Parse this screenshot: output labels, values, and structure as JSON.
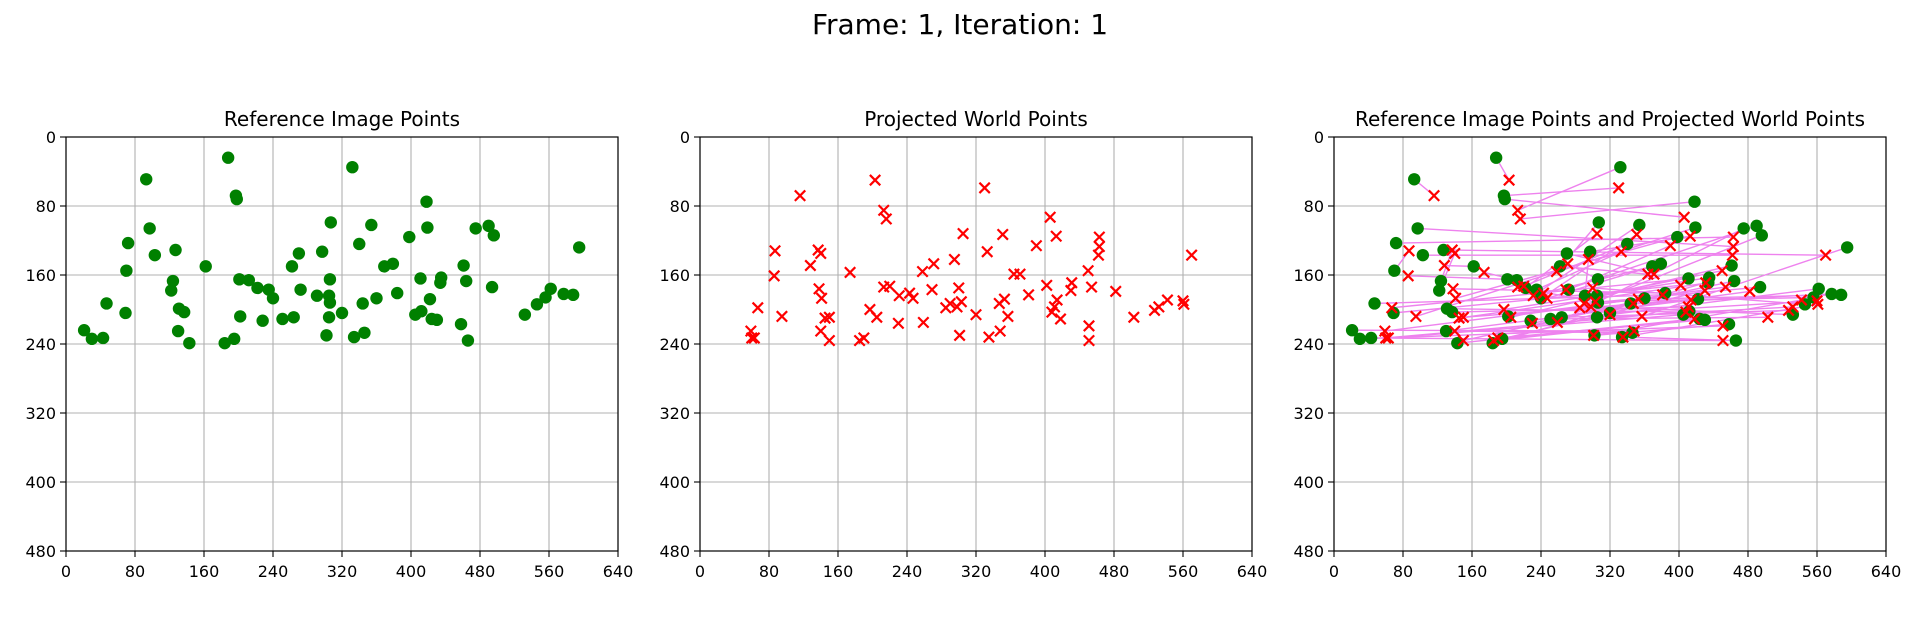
{
  "figure": {
    "suptitle": "Frame: 1, Iteration: 1"
  },
  "colors": {
    "reference": "#008000",
    "projected": "#ff0000",
    "link": "#ee82ee",
    "grid": "#b0b0b0"
  },
  "chart_data": [
    {
      "type": "scatter",
      "title": "Reference Image Points",
      "xlim": [
        0,
        640
      ],
      "ylim": [
        480,
        0
      ],
      "xticks": [
        "0",
        "80",
        "160",
        "240",
        "320",
        "400",
        "480",
        "560",
        "640"
      ],
      "yticks": [
        "0",
        "80",
        "160",
        "240",
        "320",
        "400",
        "480"
      ],
      "grid": true,
      "series": [
        {
          "marker": "circle",
          "color": "#008000",
          "points": [
            [
              93,
              49
            ],
            [
              188,
              24
            ],
            [
              197,
              68
            ],
            [
              198,
              72
            ],
            [
              332,
              35
            ],
            [
              418,
              75
            ],
            [
              72,
              123
            ],
            [
              97,
              106
            ],
            [
              103,
              137
            ],
            [
              127,
              131
            ],
            [
              70,
              155
            ],
            [
              124,
              167
            ],
            [
              122,
              178
            ],
            [
              162,
              150
            ],
            [
              201,
              165
            ],
            [
              212,
              166
            ],
            [
              222,
              175
            ],
            [
              235,
              177
            ],
            [
              240,
              187
            ],
            [
              270,
              135
            ],
            [
              262,
              150
            ],
            [
              272,
              177
            ],
            [
              297,
              133
            ],
            [
              307,
              99
            ],
            [
              306,
              165
            ],
            [
              291,
              184
            ],
            [
              305,
              184
            ],
            [
              306,
              192
            ],
            [
              340,
              124
            ],
            [
              354,
              102
            ],
            [
              369,
              150
            ],
            [
              379,
              147
            ],
            [
              384,
              181
            ],
            [
              398,
              116
            ],
            [
              411,
              164
            ],
            [
              419,
              105
            ],
            [
              422,
              188
            ],
            [
              434,
              169
            ],
            [
              435,
              163
            ],
            [
              461,
              149
            ],
            [
              464,
              167
            ],
            [
              475,
              106
            ],
            [
              490,
              103
            ],
            [
              496,
              114
            ],
            [
              494,
              174
            ],
            [
              532,
              206
            ],
            [
              546,
              194
            ],
            [
              556,
              186
            ],
            [
              562,
              176
            ],
            [
              577,
              182
            ],
            [
              588,
              183
            ],
            [
              595,
              128
            ],
            [
              47,
              193
            ],
            [
              69,
              204
            ],
            [
              131,
              199
            ],
            [
              137,
              203
            ],
            [
              130,
              225
            ],
            [
              143,
              239
            ],
            [
              184,
              239
            ],
            [
              195,
              234
            ],
            [
              202,
              208
            ],
            [
              228,
              213
            ],
            [
              251,
              211
            ],
            [
              264,
              209
            ],
            [
              305,
              209
            ],
            [
              302,
              230
            ],
            [
              320,
              204
            ],
            [
              334,
              232
            ],
            [
              346,
              227
            ],
            [
              344,
              193
            ],
            [
              360,
              187
            ],
            [
              405,
              206
            ],
            [
              412,
              202
            ],
            [
              424,
              211
            ],
            [
              430,
              212
            ],
            [
              458,
              217
            ],
            [
              466,
              236
            ],
            [
              21,
              224
            ],
            [
              30,
              234
            ],
            [
              43,
              233
            ]
          ]
        }
      ]
    },
    {
      "type": "scatter",
      "title": "Projected World Points",
      "xlim": [
        0,
        640
      ],
      "ylim": [
        480,
        0
      ],
      "xticks": [
        "0",
        "80",
        "160",
        "240",
        "320",
        "400",
        "480",
        "560",
        "640"
      ],
      "yticks": [
        "0",
        "80",
        "160",
        "240",
        "320",
        "400",
        "480"
      ],
      "grid": true,
      "series": [
        {
          "marker": "x",
          "color": "#ff0000",
          "points": [
            [
              116,
              68
            ],
            [
              203,
              50
            ],
            [
              330,
              59
            ],
            [
              406,
              93
            ],
            [
              213,
              85
            ],
            [
              216,
              95
            ],
            [
              463,
              116
            ],
            [
              463,
              127
            ],
            [
              462,
              137
            ],
            [
              570,
              137
            ],
            [
              87,
              132
            ],
            [
              137,
              131
            ],
            [
              140,
              135
            ],
            [
              128,
              149
            ],
            [
              86,
              161
            ],
            [
              174,
              157
            ],
            [
              305,
              112
            ],
            [
              333,
              133
            ],
            [
              351,
              113
            ],
            [
              371,
              159
            ],
            [
              364,
              159
            ],
            [
              390,
              126
            ],
            [
              413,
              115
            ],
            [
              258,
              156
            ],
            [
              271,
              147
            ],
            [
              295,
              142
            ],
            [
              450,
              155
            ],
            [
              213,
              174
            ],
            [
              220,
              173
            ],
            [
              231,
              184
            ],
            [
              243,
              181
            ],
            [
              247,
              187
            ],
            [
              138,
              176
            ],
            [
              141,
              187
            ],
            [
              67,
              198
            ],
            [
              95,
              208
            ],
            [
              150,
              209
            ],
            [
              145,
              210
            ],
            [
              197,
              200
            ],
            [
              205,
              209
            ],
            [
              230,
              216
            ],
            [
              259,
              215
            ],
            [
              269,
              177
            ],
            [
              285,
              198
            ],
            [
              290,
              193
            ],
            [
              298,
              197
            ],
            [
              300,
              175
            ],
            [
              303,
              191
            ],
            [
              320,
              206
            ],
            [
              347,
              193
            ],
            [
              353,
              188
            ],
            [
              357,
              208
            ],
            [
              381,
              183
            ],
            [
              402,
              172
            ],
            [
              408,
              203
            ],
            [
              411,
              197
            ],
            [
              414,
              189
            ],
            [
              418,
              211
            ],
            [
              431,
              169
            ],
            [
              430,
              178
            ],
            [
              454,
              174
            ],
            [
              482,
              179
            ],
            [
              503,
              209
            ],
            [
              527,
              201
            ],
            [
              532,
              197
            ],
            [
              542,
              189
            ],
            [
              560,
              190
            ],
            [
              561,
              194
            ],
            [
              140,
              225
            ],
            [
              150,
              236
            ],
            [
              59,
              225
            ],
            [
              63,
              233
            ],
            [
              60,
              233
            ],
            [
              185,
              236
            ],
            [
              190,
              233
            ],
            [
              301,
              230
            ],
            [
              335,
              232
            ],
            [
              348,
              225
            ],
            [
              451,
              219
            ],
            [
              451,
              236
            ]
          ]
        }
      ]
    },
    {
      "type": "scatter",
      "title": "Reference Image Points and Projected World Points",
      "xlim": [
        0,
        640
      ],
      "ylim": [
        480,
        0
      ],
      "xticks": [
        "0",
        "80",
        "160",
        "240",
        "320",
        "400",
        "480",
        "560",
        "640"
      ],
      "yticks": [
        "0",
        "80",
        "160",
        "240",
        "320",
        "400",
        "480"
      ],
      "grid": true,
      "series": [
        {
          "marker": "circle",
          "color": "#008000",
          "source": 0
        },
        {
          "marker": "x",
          "color": "#ff0000",
          "source": 1
        }
      ],
      "links": {
        "color": "#ee82ee",
        "from_series": 0,
        "to_series": 1
      }
    }
  ]
}
